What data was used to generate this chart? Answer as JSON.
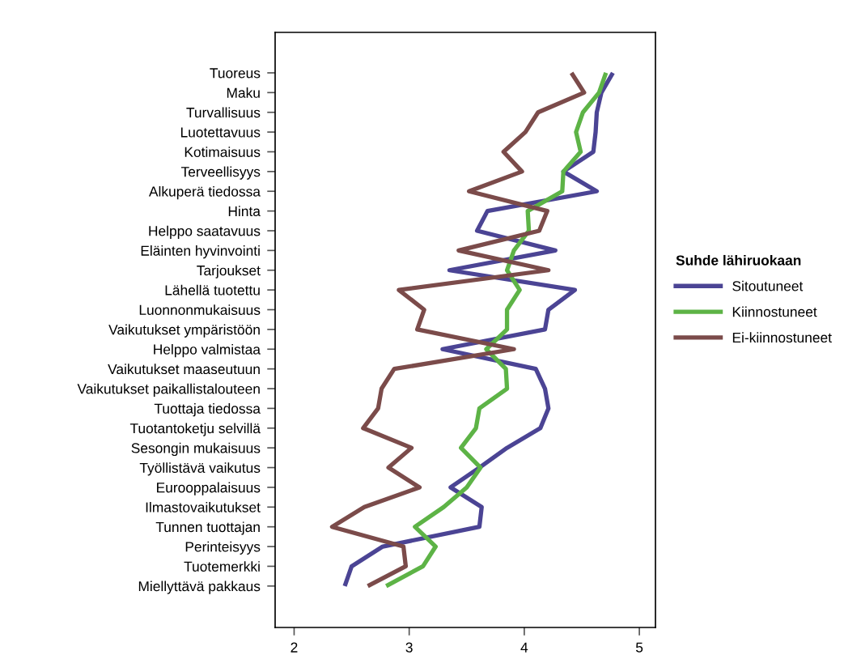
{
  "chart_data": {
    "type": "line",
    "orientation": "horizontal",
    "categories": [
      "Tuoreus",
      "Maku",
      "Turvallisuus",
      "Luotettavuus",
      "Kotimaisuus",
      "Terveellisyys",
      "Alkuperä tiedossa",
      "Hinta",
      "Helppo saatavuus",
      "Eläinten hyvinvointi",
      "Tarjoukset",
      "Lähellä tuotettu",
      "Luonnonmukaisuus",
      "Vaikutukset ympäristöön",
      "Helppo valmistaa",
      "Vaikutukset maaseutuun",
      "Vaikutukset paikallistalouteen",
      "Tuottaja tiedossa",
      "Tuotantoketju selvillä",
      "Sesongin mukaisuus",
      "Työllistävä vaikutus",
      "Eurooppalaisuus",
      "Ilmastovaikutukset",
      "Tunnen tuottajan",
      "Perinteisyys",
      "Tuotemerkki",
      "Miellyttävä pakkaus"
    ],
    "series": [
      {
        "name": "Sitoutuneet",
        "color": "#4b4494",
        "values": [
          4.77,
          4.67,
          4.63,
          4.62,
          4.6,
          4.34,
          4.63,
          3.68,
          3.59,
          4.27,
          3.35,
          4.44,
          4.21,
          4.18,
          3.29,
          4.1,
          4.18,
          4.21,
          4.14,
          3.85,
          3.61,
          3.36,
          3.63,
          3.61,
          2.77,
          2.5,
          2.44
        ]
      },
      {
        "name": "Kiinnostuneet",
        "color": "#5db346",
        "values": [
          4.71,
          4.65,
          4.51,
          4.45,
          4.49,
          4.34,
          4.33,
          4.03,
          4.04,
          3.91,
          3.85,
          3.96,
          3.85,
          3.85,
          3.67,
          3.84,
          3.85,
          3.61,
          3.58,
          3.45,
          3.62,
          3.5,
          3.3,
          3.05,
          3.23,
          3.12,
          2.8
        ]
      },
      {
        "name": "Ei-kiinnostuneet",
        "color": "#7b4b4a",
        "values": [
          4.41,
          4.52,
          4.12,
          4.01,
          3.82,
          3.98,
          3.52,
          4.2,
          4.13,
          3.43,
          4.21,
          2.91,
          3.13,
          3.07,
          3.91,
          2.87,
          2.76,
          2.73,
          2.6,
          3.02,
          2.82,
          3.09,
          2.61,
          2.33,
          2.95,
          2.97,
          2.64
        ]
      }
    ],
    "xlim": [
      1.835,
      5.14
    ],
    "xticks": [
      2,
      3,
      4,
      5
    ],
    "legend_title": "Suhde lähiruokaan",
    "legend": "right",
    "grid": false,
    "marker": "none",
    "line_style": "solid"
  }
}
